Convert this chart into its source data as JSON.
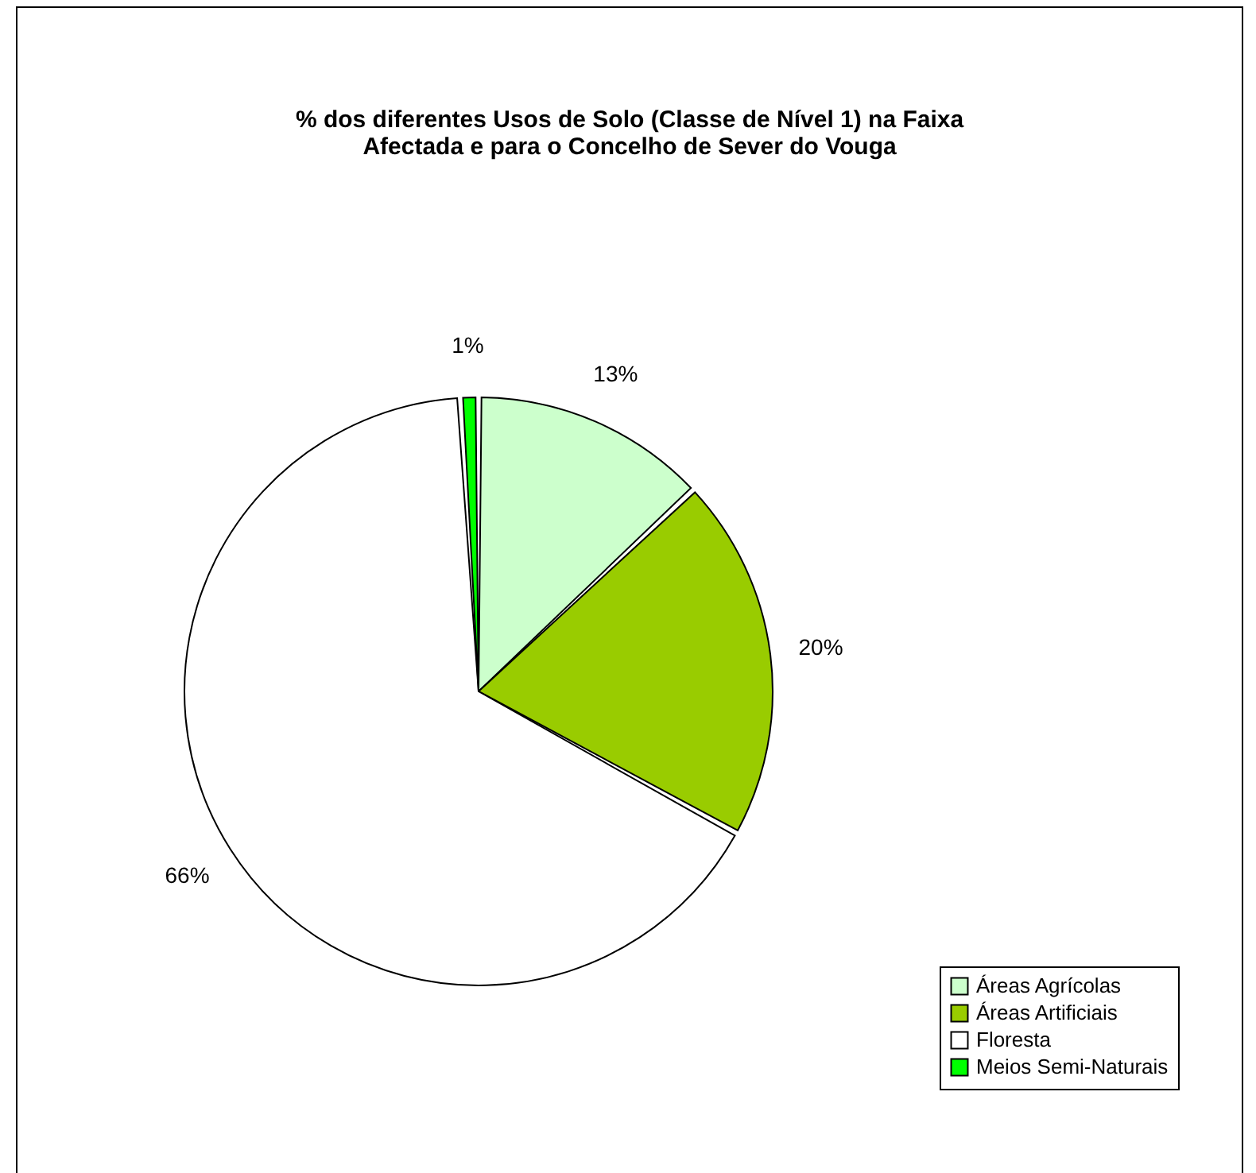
{
  "chart_data": {
    "type": "pie",
    "title": "% dos diferentes Usos de Solo (Classe de Nível 1) na Faixa\nAfectada e para o Concelho de Sever do Vouga",
    "categories": [
      "Áreas Agrícolas",
      "Áreas Artificiais",
      "Floresta",
      "Meios Semi-Naturais"
    ],
    "values": [
      13,
      20,
      66,
      1
    ],
    "colors": [
      "#ccffcc",
      "#99cc00",
      "#ffffff",
      "#00ff00"
    ],
    "value_labels": [
      "13%",
      "20%",
      "66%",
      "1%"
    ],
    "legend": "bottom right"
  }
}
